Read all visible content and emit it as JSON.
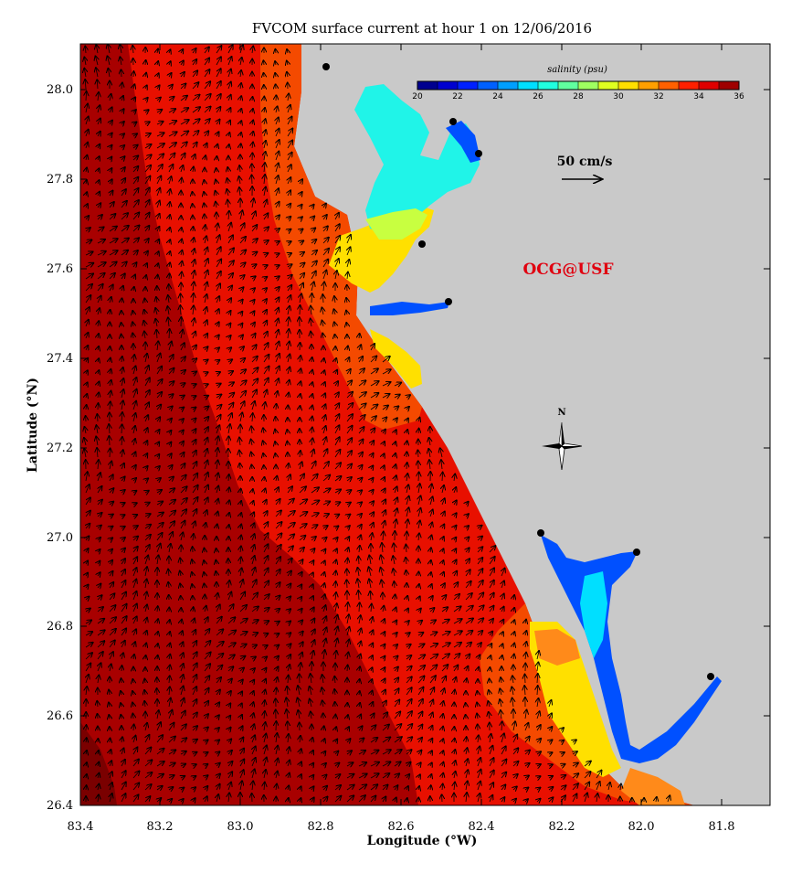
{
  "title": "FVCOM surface current at hour 1 on 12/06/2016",
  "x_axis": {
    "label": "Longitude (°W)",
    "ticks": [
      "83.4",
      "83.2",
      "83.0",
      "82.8",
      "82.6",
      "82.4",
      "82.2",
      "82.0",
      "81.8"
    ]
  },
  "y_axis": {
    "label": "Latitude (°N)",
    "ticks": [
      "26.4",
      "26.6",
      "26.8",
      "27.0",
      "27.2",
      "27.4",
      "27.6",
      "27.8",
      "28.0"
    ]
  },
  "colorbar": {
    "title": "salinity (psu)",
    "ticks": [
      "20",
      "22",
      "24",
      "26",
      "28",
      "30",
      "32",
      "34",
      "36"
    ],
    "colors": [
      "#00008f",
      "#0000cf",
      "#0020ff",
      "#0060ff",
      "#009fff",
      "#00dfff",
      "#20ffdf",
      "#60ff9f",
      "#9fff60",
      "#dfff20",
      "#ffdf00",
      "#ff9f00",
      "#ff6000",
      "#ff2000",
      "#df0000",
      "#9f0000"
    ]
  },
  "scale_arrow": {
    "label": "50 cm/s"
  },
  "watermark": "OCG@USF",
  "compass": {
    "label": "N"
  },
  "colors": {
    "land": "#c9c9c9",
    "deep_red": "#a80000",
    "red": "#e81000",
    "orange_red": "#f44a00",
    "orange": "#ff8a1a",
    "yellow": "#ffe000",
    "yellow_green": "#c8ff40",
    "cyan": "#20f4e8",
    "blue": "#0050ff",
    "watermark": "#e0000f"
  }
}
